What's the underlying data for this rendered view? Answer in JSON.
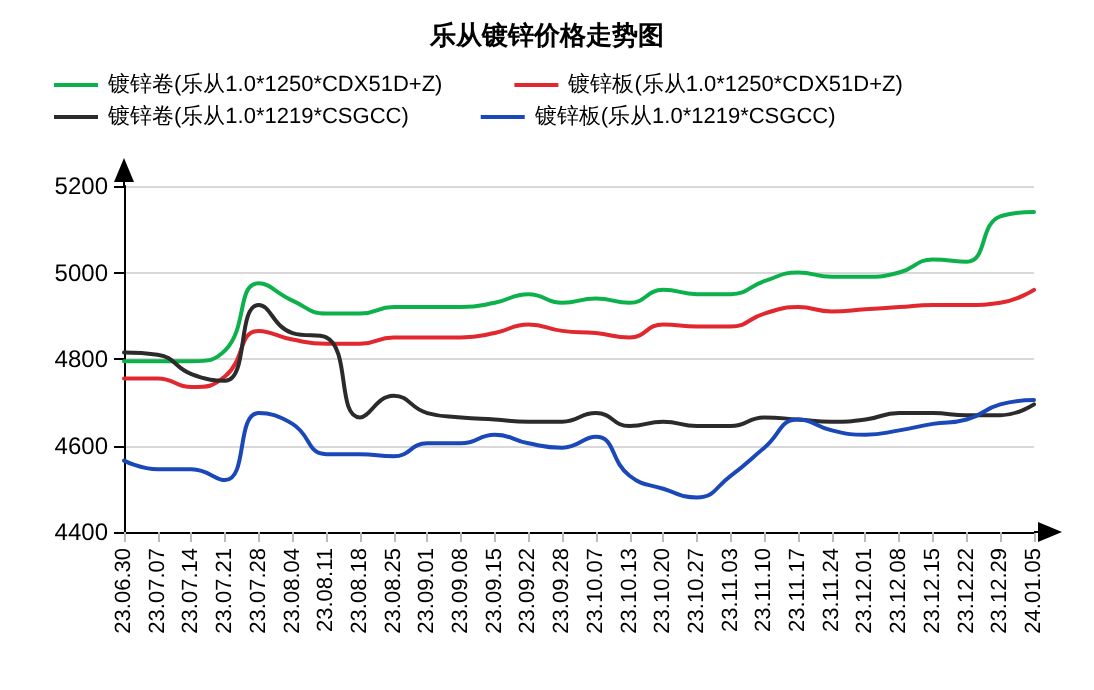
{
  "chart_data": {
    "type": "line",
    "title": "乐从镀锌价格走势图",
    "categories": [
      "23.06.30",
      "23.07.07",
      "23.07.14",
      "23.07.21",
      "23.07.28",
      "23.08.04",
      "23.08.11",
      "23.08.18",
      "23.08.25",
      "23.09.01",
      "23.09.08",
      "23.09.15",
      "23.09.22",
      "23.09.28",
      "23.10.07",
      "23.10.13",
      "23.10.20",
      "23.10.27",
      "23.11.03",
      "23.11.10",
      "23.11.17",
      "23.11.24",
      "23.12.01",
      "23.12.08",
      "23.12.15",
      "23.12.22",
      "23.12.29",
      "24.01.05"
    ],
    "series": [
      {
        "name": "镀锌卷(乐从1.0*1250*CDX51D+Z)",
        "color": "#0db14b",
        "values": [
          4795,
          4795,
          4795,
          4820,
          4975,
          4935,
          4905,
          4905,
          4920,
          4920,
          4920,
          4930,
          4950,
          4930,
          4940,
          4930,
          4960,
          4950,
          4950,
          4980,
          5000,
          4990,
          4990,
          5000,
          5030,
          5025,
          5130,
          5140
        ]
      },
      {
        "name": "镀锌板(乐从1.0*1250*CDX51D+Z)",
        "color": "#e0282e",
        "values": [
          4755,
          4755,
          4735,
          4760,
          4865,
          4845,
          4835,
          4835,
          4850,
          4850,
          4850,
          4860,
          4880,
          4865,
          4860,
          4850,
          4880,
          4875,
          4875,
          4905,
          4920,
          4910,
          4915,
          4920,
          4925,
          4925,
          4930,
          4960
        ]
      },
      {
        "name": "镀锌卷(乐从1.0*1219*CSGCC)",
        "color": "#2b2b2b",
        "values": [
          4815,
          4810,
          4765,
          4750,
          4925,
          4860,
          4850,
          4665,
          4715,
          4675,
          4665,
          4660,
          4655,
          4655,
          4675,
          4645,
          4655,
          4645,
          4645,
          4665,
          4660,
          4655,
          4660,
          4675,
          4675,
          4670,
          4670,
          4695
        ]
      },
      {
        "name": "镀锌板(乐从1.0*1219*CSGCC)",
        "color": "#1a48b8",
        "values": [
          4565,
          4545,
          4545,
          4520,
          4675,
          4650,
          4580,
          4580,
          4575,
          4605,
          4605,
          4625,
          4605,
          4595,
          4620,
          4530,
          4500,
          4480,
          4530,
          4595,
          4660,
          4635,
          4625,
          4635,
          4650,
          4660,
          4695,
          4705
        ]
      }
    ],
    "ylim": [
      4400,
      5200
    ],
    "yticks": [
      4400,
      4600,
      4800,
      5000,
      5200
    ],
    "grid": "y",
    "legend": "top",
    "marker": "none",
    "line_style": "solid"
  }
}
